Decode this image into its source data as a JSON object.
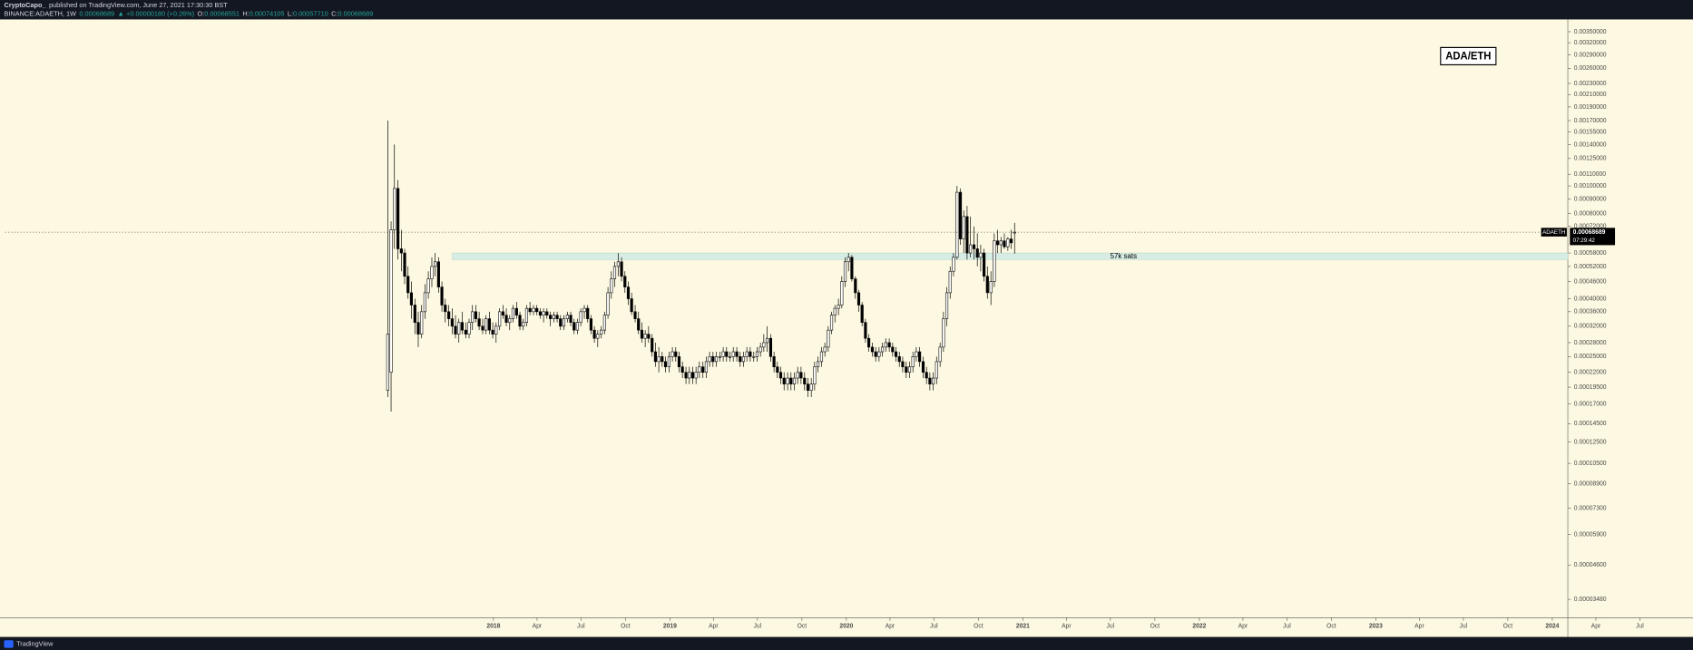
{
  "header": {
    "author": "CryptoCapo_",
    "published": "published on TradingView.com, June 27, 2021 17:30:30 BST",
    "symbol": "BINANCE:ADAETH, 1W",
    "last": "0.00068689",
    "arrow": "▲",
    "change": "+0.00000180 (+0.26%)",
    "ohlc": [
      {
        "label": "O:",
        "value": "0.00068551"
      },
      {
        "label": "H:",
        "value": "0.00074105"
      },
      {
        "label": "L:",
        "value": "0.00057710"
      },
      {
        "label": "C:",
        "value": "0.00068689"
      }
    ]
  },
  "footer": {
    "brand": "TradingView"
  },
  "chart_data": {
    "type": "candlestick",
    "title": "ADA/ETH",
    "log_scale": true,
    "grid": false,
    "up_color": "#ffffff",
    "down_color": "#000000",
    "wick_color": "#000000",
    "x": [
      2017.401,
      2017.42,
      2017.439,
      2017.459,
      2017.478,
      2017.497,
      2017.516,
      2017.535,
      2017.555,
      2017.574,
      2017.593,
      2017.612,
      2017.631,
      2017.651,
      2017.67,
      2017.689,
      2017.708,
      2017.727,
      2017.747,
      2017.766,
      2017.785,
      2017.804,
      2017.823,
      2017.843,
      2017.862,
      2017.881,
      2017.9,
      2017.919,
      2017.939,
      2017.958,
      2017.977,
      2017.996,
      2018.015,
      2018.035,
      2018.054,
      2018.073,
      2018.092,
      2018.111,
      2018.131,
      2018.15,
      2018.169,
      2018.188,
      2018.207,
      2018.227,
      2018.246,
      2018.265,
      2018.284,
      2018.303,
      2018.323,
      2018.342,
      2018.361,
      2018.38,
      2018.399,
      2018.419,
      2018.438,
      2018.457,
      2018.476,
      2018.495,
      2018.515,
      2018.534,
      2018.553,
      2018.572,
      2018.591,
      2018.611,
      2018.63,
      2018.649,
      2018.668,
      2018.687,
      2018.707,
      2018.726,
      2018.745,
      2018.764,
      2018.783,
      2018.803,
      2018.822,
      2018.841,
      2018.86,
      2018.879,
      2018.899,
      2018.918,
      2018.937,
      2018.956,
      2018.975,
      2018.995,
      2019.014,
      2019.033,
      2019.052,
      2019.071,
      2019.091,
      2019.11,
      2019.129,
      2019.148,
      2019.167,
      2019.187,
      2019.206,
      2019.225,
      2019.244,
      2019.263,
      2019.283,
      2019.302,
      2019.321,
      2019.34,
      2019.359,
      2019.379,
      2019.398,
      2019.417,
      2019.436,
      2019.455,
      2019.475,
      2019.494,
      2019.513,
      2019.532,
      2019.551,
      2019.571,
      2019.59,
      2019.609,
      2019.628,
      2019.647,
      2019.667,
      2019.686,
      2019.705,
      2019.724,
      2019.743,
      2019.763,
      2019.782,
      2019.801,
      2019.82,
      2019.839,
      2019.859,
      2019.878,
      2019.897,
      2019.916,
      2019.935,
      2019.955,
      2019.974,
      2019.993,
      2020.012,
      2020.031,
      2020.051,
      2020.07,
      2020.089,
      2020.108,
      2020.127,
      2020.147,
      2020.166,
      2020.185,
      2020.204,
      2020.223,
      2020.243,
      2020.262,
      2020.281,
      2020.3,
      2020.319,
      2020.339,
      2020.358,
      2020.377,
      2020.396,
      2020.415,
      2020.435,
      2020.454,
      2020.473,
      2020.492,
      2020.511,
      2020.531,
      2020.55,
      2020.569,
      2020.588,
      2020.607,
      2020.627,
      2020.646,
      2020.665,
      2020.684,
      2020.703,
      2020.723,
      2020.742,
      2020.761,
      2020.78,
      2020.799,
      2020.819,
      2020.838,
      2020.857,
      2020.876,
      2020.895,
      2020.915,
      2020.934,
      2020.953
    ],
    "open": [
      0.00019,
      0.00022,
      0.0007,
      0.00098,
      0.0006,
      0.00058,
      0.00048,
      0.00042,
      0.00038,
      0.00033,
      0.0003,
      0.00036,
      0.00042,
      0.00047,
      0.00052,
      0.00054,
      0.00044,
      0.00038,
      0.00036,
      0.00034,
      0.00032,
      0.0003,
      0.00033,
      0.00031,
      0.0003,
      0.00033,
      0.00036,
      0.00034,
      0.00032,
      0.00031,
      0.00034,
      0.00031,
      0.0003,
      0.00032,
      0.00036,
      0.00035,
      0.00033,
      0.00034,
      0.00037,
      0.00035,
      0.00032,
      0.00033,
      0.00037,
      0.00036,
      0.00037,
      0.00036,
      0.00035,
      0.00036,
      0.00035,
      0.00034,
      0.00035,
      0.00034,
      0.00032,
      0.00034,
      0.00035,
      0.00033,
      0.00031,
      0.00033,
      0.00036,
      0.00037,
      0.00034,
      0.00031,
      0.00029,
      0.0003,
      0.00031,
      0.00035,
      0.00042,
      0.00047,
      0.00052,
      0.00054,
      0.00048,
      0.00044,
      0.0004,
      0.00036,
      0.00034,
      0.00031,
      0.00029,
      0.0003,
      0.00029,
      0.00026,
      0.00024,
      0.00025,
      0.00024,
      0.00023,
      0.00025,
      0.00026,
      0.00025,
      0.00023,
      0.00022,
      0.00021,
      0.00022,
      0.00021,
      0.00022,
      0.00023,
      0.00022,
      0.00024,
      0.00025,
      0.00024,
      0.00025,
      0.00025,
      0.00026,
      0.00025,
      0.00025,
      0.00026,
      0.00025,
      0.00024,
      0.00025,
      0.00026,
      0.00025,
      0.00025,
      0.00026,
      0.00027,
      0.00028,
      0.00029,
      0.00025,
      0.00023,
      0.00022,
      0.00021,
      0.0002,
      0.00021,
      0.0002,
      0.00021,
      0.00022,
      0.00021,
      0.0002,
      0.00019,
      0.0002,
      0.00023,
      0.00024,
      0.00026,
      0.00027,
      0.00031,
      0.00035,
      0.00037,
      0.00038,
      0.00046,
      0.00054,
      0.00056,
      0.00047,
      0.00042,
      0.00038,
      0.00033,
      0.00029,
      0.00027,
      0.00026,
      0.00025,
      0.00026,
      0.00027,
      0.00028,
      0.00027,
      0.00026,
      0.00025,
      0.00024,
      0.00023,
      0.00022,
      0.00023,
      0.00025,
      0.00026,
      0.00024,
      0.00022,
      0.00021,
      0.0002,
      0.00021,
      0.00024,
      0.00027,
      0.00034,
      0.00042,
      0.0005,
      0.00056,
      0.00095,
      0.00065,
      0.00078,
      0.00058,
      0.00062,
      0.0006,
      0.00056,
      0.00058,
      0.00048,
      0.00042,
      0.00046,
      0.00064,
      0.00062,
      0.00064,
      0.00061,
      0.00065,
      0.00068551
    ],
    "high": [
      0.0017,
      0.00075,
      0.0014,
      0.00105,
      0.0007,
      0.0006,
      0.00052,
      0.00046,
      0.0004,
      0.00036,
      0.00038,
      0.00045,
      0.0005,
      0.00056,
      0.00058,
      0.00056,
      0.00046,
      0.0004,
      0.00038,
      0.00037,
      0.00035,
      0.00034,
      0.00036,
      0.00033,
      0.00034,
      0.00038,
      0.00038,
      0.00036,
      0.00034,
      0.00035,
      0.00036,
      0.00033,
      0.00033,
      0.00037,
      0.00038,
      0.00037,
      0.00035,
      0.00038,
      0.00039,
      0.00036,
      0.00034,
      0.00038,
      0.00039,
      0.00038,
      0.00038,
      0.00037,
      0.00037,
      0.00037,
      0.00036,
      0.00036,
      0.00036,
      0.00035,
      0.00035,
      0.00036,
      0.00036,
      0.00034,
      0.00034,
      0.00037,
      0.00038,
      0.00038,
      0.00035,
      0.00032,
      0.00031,
      0.00032,
      0.00036,
      0.00044,
      0.0005,
      0.00054,
      0.00058,
      0.00056,
      0.0005,
      0.00046,
      0.00042,
      0.00038,
      0.00036,
      0.00033,
      0.00031,
      0.00032,
      0.0003,
      0.00028,
      0.00027,
      0.00026,
      0.00025,
      0.00026,
      0.00027,
      0.00027,
      0.00026,
      0.00024,
      0.00023,
      0.00023,
      0.00023,
      0.00023,
      0.00024,
      0.00024,
      0.00025,
      0.00026,
      0.00026,
      0.00026,
      0.00026,
      0.00027,
      0.00027,
      0.00026,
      0.00027,
      0.00027,
      0.00026,
      0.00026,
      0.00027,
      0.00027,
      0.00026,
      0.00027,
      0.00028,
      0.0003,
      0.00032,
      0.0003,
      0.00026,
      0.00024,
      0.00023,
      0.00022,
      0.00022,
      0.00022,
      0.00022,
      0.00023,
      0.00023,
      0.00022,
      0.00021,
      0.00021,
      0.00024,
      0.00025,
      0.00027,
      0.00028,
      0.00032,
      0.00036,
      0.00038,
      0.0004,
      0.00048,
      0.00056,
      0.00058,
      0.00057,
      0.00048,
      0.00043,
      0.00039,
      0.00034,
      0.0003,
      0.00028,
      0.00027,
      0.00027,
      0.00028,
      0.00029,
      0.00029,
      0.00028,
      0.00027,
      0.00026,
      0.00025,
      0.00024,
      0.00024,
      0.00026,
      0.00027,
      0.00027,
      0.00025,
      0.00023,
      0.00022,
      0.00022,
      0.00025,
      0.00028,
      0.00036,
      0.00044,
      0.00052,
      0.00058,
      0.001,
      0.00098,
      0.00082,
      0.00085,
      0.00078,
      0.00072,
      0.00068,
      0.00062,
      0.0006,
      0.00052,
      0.0005,
      0.00068,
      0.0007,
      0.00066,
      0.00068,
      0.00066,
      0.0007,
      0.00074105
    ],
    "low": [
      0.00018,
      0.00016,
      0.0006,
      0.00055,
      0.0005,
      0.00045,
      0.0004,
      0.00034,
      0.0003,
      0.00027,
      0.00029,
      0.00034,
      0.0004,
      0.00044,
      0.00048,
      0.00042,
      0.00036,
      0.00033,
      0.00032,
      0.0003,
      0.00029,
      0.00028,
      0.0003,
      0.00029,
      0.00029,
      0.00031,
      0.00033,
      0.00031,
      0.0003,
      0.0003,
      0.0003,
      0.00029,
      0.00028,
      0.00031,
      0.00034,
      0.00032,
      0.00031,
      0.00033,
      0.00034,
      0.00031,
      0.00031,
      0.00032,
      0.00035,
      0.00035,
      0.00035,
      0.00034,
      0.00033,
      0.00034,
      0.00032,
      0.00033,
      0.00033,
      0.00031,
      0.00031,
      0.00033,
      0.00032,
      0.0003,
      0.0003,
      0.00032,
      0.00034,
      0.00033,
      0.0003,
      0.00028,
      0.00027,
      0.00029,
      0.0003,
      0.00034,
      0.0004,
      0.00044,
      0.00048,
      0.00046,
      0.00042,
      0.00038,
      0.00035,
      0.00033,
      0.0003,
      0.00028,
      0.00027,
      0.00028,
      0.00025,
      0.00023,
      0.00022,
      0.00023,
      0.00022,
      0.00022,
      0.00024,
      0.00024,
      0.00022,
      0.00021,
      0.0002,
      0.0002,
      0.0002,
      0.0002,
      0.00021,
      0.00021,
      0.00021,
      0.00023,
      0.00023,
      0.00023,
      0.00024,
      0.00024,
      0.00024,
      0.00024,
      0.00024,
      0.00024,
      0.00023,
      0.00023,
      0.00024,
      0.00024,
      0.00024,
      0.00024,
      0.00025,
      0.00026,
      0.00026,
      0.00024,
      0.00022,
      0.00021,
      0.0002,
      0.00019,
      0.00019,
      0.00019,
      0.00019,
      0.0002,
      0.0002,
      0.00019,
      0.00018,
      0.00018,
      0.00019,
      0.00022,
      0.00023,
      0.00025,
      0.00026,
      0.0003,
      0.00033,
      0.00035,
      0.00037,
      0.00044,
      0.0005,
      0.00046,
      0.0004,
      0.00036,
      0.00032,
      0.00028,
      0.00026,
      0.00025,
      0.00024,
      0.00024,
      0.00025,
      0.00026,
      0.00026,
      0.00025,
      0.00024,
      0.00023,
      0.00022,
      0.00021,
      0.00021,
      0.00022,
      0.00024,
      0.00023,
      0.00021,
      0.0002,
      0.00019,
      0.00019,
      0.0002,
      0.00023,
      0.00026,
      0.00032,
      0.0004,
      0.00048,
      0.00055,
      0.00062,
      0.00058,
      0.00055,
      0.00056,
      0.00055,
      0.00052,
      0.0005,
      0.00046,
      0.0004,
      0.00038,
      0.00044,
      0.00058,
      0.00058,
      0.0006,
      0.00059,
      0.0006,
      0.0005771
    ],
    "close": [
      0.0003,
      0.0007,
      0.00098,
      0.0006,
      0.00058,
      0.00048,
      0.00042,
      0.00038,
      0.00033,
      0.0003,
      0.00036,
      0.00042,
      0.00047,
      0.00052,
      0.00054,
      0.00044,
      0.00038,
      0.00036,
      0.00034,
      0.00032,
      0.0003,
      0.00033,
      0.00031,
      0.0003,
      0.00033,
      0.00036,
      0.00034,
      0.00032,
      0.00031,
      0.00034,
      0.00031,
      0.0003,
      0.00032,
      0.00036,
      0.00035,
      0.00033,
      0.00034,
      0.00037,
      0.00035,
      0.00032,
      0.00033,
      0.00037,
      0.00036,
      0.00037,
      0.00036,
      0.00035,
      0.00036,
      0.00035,
      0.00034,
      0.00035,
      0.00034,
      0.00032,
      0.00034,
      0.00035,
      0.00033,
      0.00031,
      0.00033,
      0.00036,
      0.00037,
      0.00034,
      0.00031,
      0.00029,
      0.0003,
      0.00031,
      0.00035,
      0.00042,
      0.00047,
      0.00052,
      0.00054,
      0.00048,
      0.00044,
      0.0004,
      0.00036,
      0.00034,
      0.00031,
      0.00029,
      0.0003,
      0.00029,
      0.00026,
      0.00024,
      0.00025,
      0.00024,
      0.00023,
      0.00025,
      0.00026,
      0.00025,
      0.00023,
      0.00022,
      0.00021,
      0.00022,
      0.00021,
      0.00022,
      0.00023,
      0.00022,
      0.00024,
      0.00025,
      0.00024,
      0.00025,
      0.00025,
      0.00026,
      0.00025,
      0.00025,
      0.00026,
      0.00025,
      0.00024,
      0.00025,
      0.00026,
      0.00025,
      0.00025,
      0.00026,
      0.00027,
      0.00028,
      0.00029,
      0.00025,
      0.00023,
      0.00022,
      0.00021,
      0.0002,
      0.00021,
      0.0002,
      0.00021,
      0.00022,
      0.00021,
      0.0002,
      0.00019,
      0.0002,
      0.00023,
      0.00024,
      0.00026,
      0.00027,
      0.00031,
      0.00035,
      0.00037,
      0.00038,
      0.00046,
      0.00054,
      0.00056,
      0.00047,
      0.00042,
      0.00038,
      0.00033,
      0.00029,
      0.00027,
      0.00026,
      0.00025,
      0.00026,
      0.00027,
      0.00028,
      0.00027,
      0.00026,
      0.00025,
      0.00024,
      0.00023,
      0.00022,
      0.00023,
      0.00025,
      0.00026,
      0.00024,
      0.00022,
      0.00021,
      0.0002,
      0.00021,
      0.00024,
      0.00027,
      0.00034,
      0.00042,
      0.0005,
      0.00056,
      0.00095,
      0.00065,
      0.00078,
      0.00058,
      0.00062,
      0.0006,
      0.00056,
      0.00058,
      0.00048,
      0.00042,
      0.00046,
      0.00064,
      0.00062,
      0.00064,
      0.00061,
      0.00065,
      0.00063,
      0.00068689
    ],
    "xlim": [
      2015.233,
      2024.088
    ],
    "xticks": [
      2018,
      {
        "value": 2018.247,
        "label": "Apr"
      },
      {
        "value": 2018.496,
        "label": "Jul"
      },
      {
        "value": 2018.748,
        "label": "Oct"
      },
      2019,
      {
        "value": 2019.247,
        "label": "Apr"
      },
      {
        "value": 2019.496,
        "label": "Jul"
      },
      {
        "value": 2019.748,
        "label": "Oct"
      },
      2020,
      {
        "value": 2020.247,
        "label": "Apr"
      },
      {
        "value": 2020.496,
        "label": "Jul"
      },
      {
        "value": 2020.748,
        "label": "Oct"
      },
      2021,
      {
        "value": 2021.247,
        "label": "Apr"
      },
      {
        "value": 2021.496,
        "label": "Jul"
      },
      {
        "value": 2021.748,
        "label": "Oct"
      },
      2022,
      {
        "value": 2022.247,
        "label": "Apr"
      },
      {
        "value": 2022.496,
        "label": "Jul"
      },
      {
        "value": 2022.748,
        "label": "Oct"
      },
      2023,
      {
        "value": 2023.247,
        "label": "Apr"
      },
      {
        "value": 2023.496,
        "label": "Jul"
      },
      {
        "value": 2023.748,
        "label": "Oct"
      },
      2024,
      {
        "value": 2024.247,
        "label": "Apr"
      },
      {
        "value": 2024.496,
        "label": "Jul"
      }
    ],
    "ylim": [
      3e-05,
      0.0038
    ],
    "yticks": [
      {
        "value": 0.0035,
        "label": "0.00350000"
      },
      {
        "value": 0.0032,
        "label": "0.00320000"
      },
      {
        "value": 0.0029,
        "label": "0.00290000"
      },
      {
        "value": 0.0026,
        "label": "0.00260000"
      },
      {
        "value": 0.0023,
        "label": "0.00230000"
      },
      {
        "value": 0.0021,
        "label": "0.00210000"
      },
      {
        "value": 0.0019,
        "label": "0.00190000"
      },
      {
        "value": 0.0017,
        "label": "0.00170000"
      },
      {
        "value": 0.00155,
        "label": "0.00155000"
      },
      {
        "value": 0.0014,
        "label": "0.00140000"
      },
      {
        "value": 0.00125,
        "label": "0.00125000"
      },
      {
        "value": 0.0011,
        "label": "0.00110000"
      },
      {
        "value": 0.001,
        "label": "0.00100000"
      },
      {
        "value": 0.0009,
        "label": "0.00090000"
      },
      {
        "value": 0.0008,
        "label": "0.00080000"
      },
      {
        "value": 0.00072,
        "label": "0.00072000"
      },
      {
        "value": 0.00058,
        "label": "0.00058000"
      },
      {
        "value": 0.00052,
        "label": "0.00052000"
      },
      {
        "value": 0.00046,
        "label": "0.00046000"
      },
      {
        "value": 0.0004,
        "label": "0.00040000"
      },
      {
        "value": 0.00036,
        "label": "0.00036000"
      },
      {
        "value": 0.00032,
        "label": "0.00032000"
      },
      {
        "value": 0.00028,
        "label": "0.00028000"
      },
      {
        "value": 0.00025,
        "label": "0.00025000"
      },
      {
        "value": 0.00022,
        "label": "0.00022000"
      },
      {
        "value": 0.000195,
        "label": "0.00019500"
      },
      {
        "value": 0.00017,
        "label": "0.00017000"
      },
      {
        "value": 0.000145,
        "label": "0.00014500"
      },
      {
        "value": 0.000125,
        "label": "0.00012500"
      },
      {
        "value": 0.000105,
        "label": "0.00010500"
      },
      {
        "value": 8.9e-05,
        "label": "0.00008900"
      },
      {
        "value": 7.3e-05,
        "label": "0.00007300"
      },
      {
        "value": 5.9e-05,
        "label": "0.00005900"
      },
      {
        "value": 4.6e-05,
        "label": "0.00004600"
      },
      {
        "value": 3.48e-05,
        "label": "0.00003480"
      }
    ],
    "band": {
      "label": "57k sats",
      "from": 0.00055,
      "to": 0.00058,
      "start": 2017.767,
      "color": "#d6ece4"
    },
    "last_price": {
      "symbol": "ADAETH",
      "value": 0.00068689,
      "countdown": "07:29:42"
    }
  }
}
